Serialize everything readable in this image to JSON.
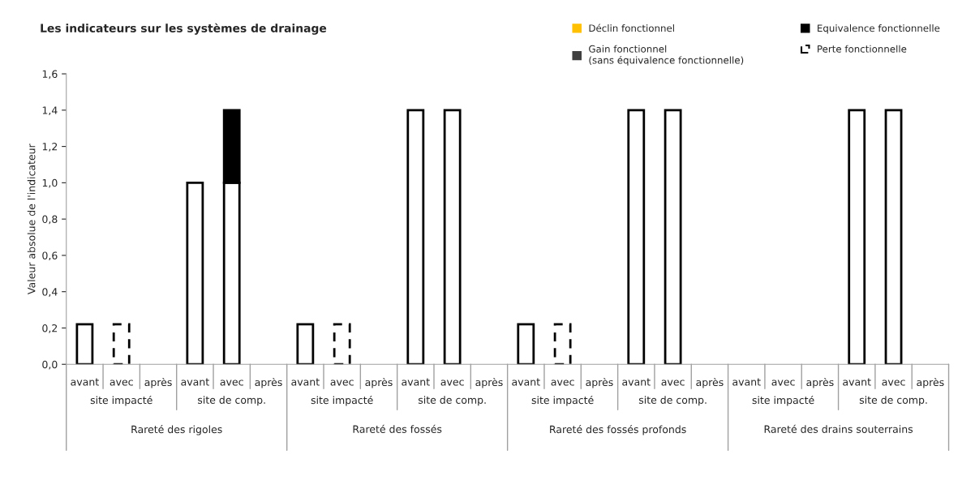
{
  "chart_data": {
    "type": "bar",
    "stacked": true,
    "title": "Les indicateurs sur les systèmes de drainage",
    "ylabel": "Valeur absolue de l'indicateur",
    "categories": [
      "avant",
      "avec",
      "après",
      "avant",
      "avec",
      "après",
      "avant",
      "avec",
      "après",
      "avant",
      "avec",
      "après",
      "avant",
      "avec",
      "après",
      "avant",
      "avec",
      "après",
      "avant",
      "avec",
      "après",
      "avant",
      "avec",
      "après"
    ],
    "annotations": [
      "site impacté",
      "site de comp.",
      "site impacté",
      "site de comp.",
      "site impacté",
      "site de comp.",
      "site impacté",
      "site de comp.",
      "Rareté des rigoles",
      "Rareté des fossés",
      "Rareté des fossés profonds",
      "Rareté des drains souterrains"
    ],
    "series": [
      {
        "color": "#ffffff",
        "values": [
          0.22,
          null,
          null,
          1.0,
          1.0,
          null,
          0.22,
          null,
          null,
          1.4,
          1.4,
          null,
          0.22,
          null,
          null,
          1.4,
          1.4,
          null,
          null,
          null,
          null,
          1.4,
          1.4,
          null
        ]
      },
      {
        "name": "Déclin fonctionnel",
        "color": "#ffc000",
        "values": [
          null,
          null,
          null,
          null,
          null,
          null,
          null,
          null,
          null,
          null,
          null,
          null,
          null,
          null,
          null,
          null,
          null,
          null,
          null,
          null,
          null,
          null,
          null,
          null
        ]
      },
      {
        "name": "Equivalence fonctionnelle",
        "color": "#000000",
        "values": [
          null,
          null,
          null,
          null,
          0.4,
          null,
          null,
          null,
          null,
          null,
          null,
          null,
          null,
          null,
          null,
          null,
          null,
          null,
          null,
          null,
          null,
          null,
          null,
          null
        ]
      },
      {
        "name": "Gain fonctionnel\n(sans équivalence fonctionnelle)",
        "color": "#404040",
        "values": [
          null,
          null,
          null,
          null,
          null,
          null,
          null,
          null,
          null,
          null,
          null,
          null,
          null,
          null,
          null,
          null,
          null,
          null,
          null,
          null,
          null,
          null,
          null,
          null
        ]
      },
      {
        "name": "Perte fonctionnelle",
        "color": "#ffffff",
        "line_style": "dashed",
        "values": [
          null,
          0.22,
          null,
          null,
          null,
          null,
          null,
          0.22,
          null,
          null,
          null,
          null,
          null,
          0.22,
          null,
          null,
          null,
          null,
          null,
          null,
          null,
          null,
          null,
          null
        ]
      }
    ],
    "ylim": [
      0,
      1.6
    ],
    "yticks": [
      {
        "value": 0,
        "label": "0,0"
      },
      {
        "value": 0.2,
        "label": "0,2"
      },
      {
        "value": 0.4,
        "label": "0,4"
      },
      {
        "value": 0.6,
        "label": "0,6"
      },
      {
        "value": 0.8,
        "label": "0,8"
      },
      {
        "value": 1.0,
        "label": "1,0"
      },
      {
        "value": 1.2,
        "label": "1,2"
      },
      {
        "value": 1.4,
        "label": "1,4"
      },
      {
        "value": 1.6,
        "label": "1,6"
      }
    ],
    "grid": false,
    "legend": "top right"
  }
}
